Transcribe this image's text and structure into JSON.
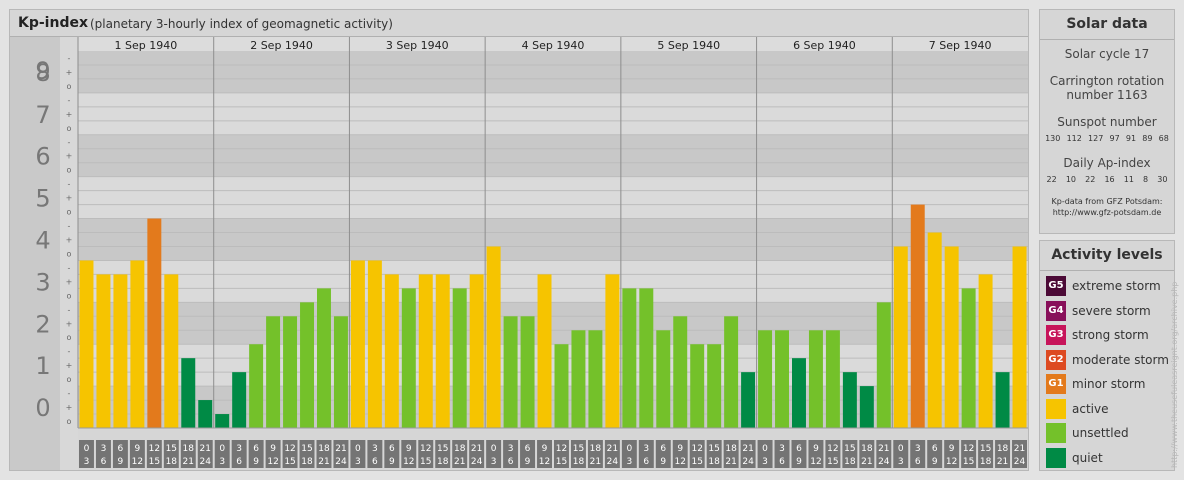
{
  "header": {
    "title": "Kp-index",
    "subtitle": "(planetary 3-hourly index of geomagnetic activity)"
  },
  "chart_data": {
    "type": "bar",
    "y_ticks": [
      "0",
      "1",
      "2",
      "3",
      "4",
      "5",
      "6",
      "7",
      "8",
      "9"
    ],
    "ylim": [
      0,
      9
    ],
    "minor_ticks": [
      "o",
      "+",
      "-"
    ],
    "days": [
      "1 Sep 1940",
      "2 Sep 1940",
      "3 Sep 1940",
      "4 Sep 1940",
      "5 Sep 1940",
      "6 Sep 1940",
      "7 Sep 1940"
    ],
    "interval_start": [
      "0",
      "3",
      "6",
      "9",
      "12",
      "15",
      "18",
      "21"
    ],
    "interval_end": [
      "3",
      "6",
      "9",
      "12",
      "15",
      "18",
      "21",
      "24"
    ],
    "values": [
      4.0,
      3.667,
      3.667,
      4.0,
      5.0,
      3.667,
      1.667,
      0.667,
      0.333,
      1.333,
      2.0,
      2.667,
      2.667,
      3.0,
      3.333,
      2.667,
      4.0,
      4.0,
      3.667,
      3.333,
      3.667,
      3.667,
      3.333,
      3.667,
      4.333,
      2.667,
      2.667,
      3.667,
      2.0,
      2.333,
      2.333,
      3.667,
      3.333,
      3.333,
      2.333,
      2.667,
      2.0,
      2.0,
      2.667,
      1.333,
      2.333,
      2.333,
      1.667,
      2.333,
      2.333,
      1.333,
      1.0,
      3.0,
      4.333,
      5.333,
      4.667,
      4.333,
      3.333,
      3.667,
      1.333,
      4.333
    ],
    "colors": {
      "quiet": "#008a45",
      "unsettled": "#74c12a",
      "active": "#f6c400",
      "G1": "#e37a1c",
      "G2": "#dd4a21",
      "G3": "#c7145a",
      "G4": "#88105a",
      "G5": "#4b0a36"
    }
  },
  "solar": {
    "title": "Solar data",
    "cycle": "Solar cycle 17",
    "carrington_1": "Carrington rotation",
    "carrington_2": "number 1163",
    "sunspot_label": "Sunspot number",
    "sunspot_values": [
      "130",
      "112",
      "127",
      "97",
      "91",
      "89",
      "68"
    ],
    "ap_label": "Daily Ap-index",
    "ap_values": [
      "22",
      "10",
      "22",
      "16",
      "11",
      "8",
      "30"
    ],
    "source_1": "Kp-data from GFZ Potsdam:",
    "source_2": "http://www.gfz-potsdam.de"
  },
  "levels": {
    "title": "Activity levels",
    "items": [
      {
        "badge": "G5",
        "label": "extreme storm",
        "color": "#4b0a36"
      },
      {
        "badge": "G4",
        "label": "severe storm",
        "color": "#88105a"
      },
      {
        "badge": "G3",
        "label": "strong storm",
        "color": "#c7145a"
      },
      {
        "badge": "G2",
        "label": "moderate storm",
        "color": "#dd4a21"
      },
      {
        "badge": "G1",
        "label": "minor storm",
        "color": "#e37a1c"
      },
      {
        "badge": "",
        "label": "active",
        "color": "#f6c400"
      },
      {
        "badge": "",
        "label": "unsettled",
        "color": "#74c12a"
      },
      {
        "badge": "",
        "label": "quiet",
        "color": "#008a45"
      }
    ]
  },
  "credit": "http://www.theusefuleasreignt.org/archive.php"
}
